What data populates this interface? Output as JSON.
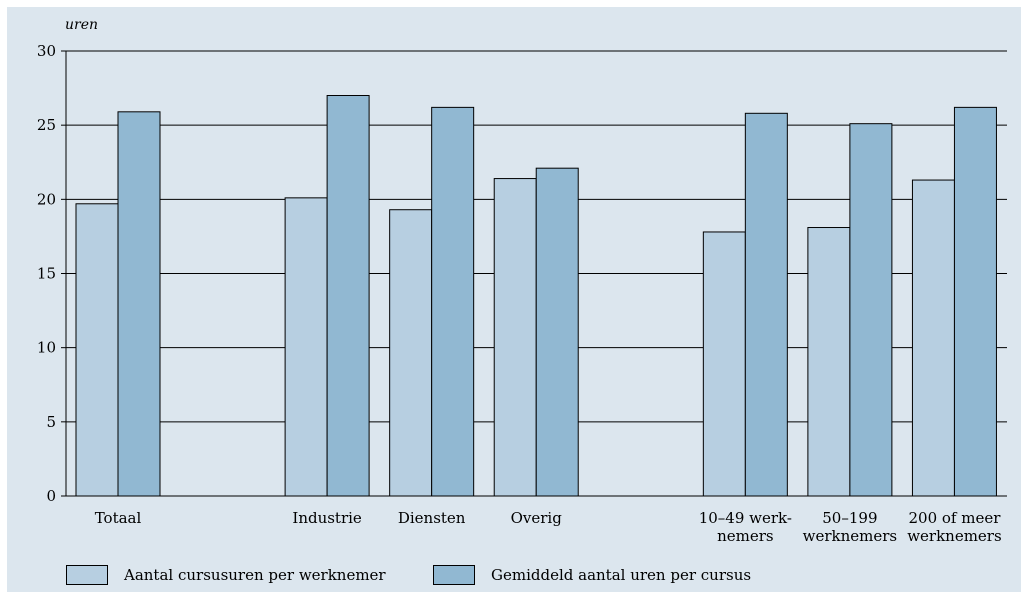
{
  "chart_data": {
    "type": "bar",
    "ylabel": "uren",
    "ylim": [
      0,
      30
    ],
    "yticks": [
      0,
      5,
      10,
      15,
      20,
      25,
      30
    ],
    "grid": true,
    "legend_position": "bottom",
    "categories": [
      [
        "Totaal"
      ],
      [
        "Industrie"
      ],
      [
        "Diensten"
      ],
      [
        "Overig"
      ],
      [
        "10–49 werk-",
        "nemers"
      ],
      [
        "50–199",
        "werknemers"
      ],
      [
        "200 of meer",
        "werknemers"
      ]
    ],
    "series": [
      {
        "name": "Aantal cursusuren per werknemer",
        "color": "#b7cfe1",
        "values": [
          19.7,
          20.1,
          19.3,
          21.4,
          17.8,
          18.1,
          21.3
        ]
      },
      {
        "name": "Gemiddeld aantal uren per cursus",
        "color": "#91b8d2",
        "values": [
          25.9,
          27.0,
          26.2,
          22.1,
          25.8,
          25.1,
          26.2
        ]
      }
    ]
  }
}
